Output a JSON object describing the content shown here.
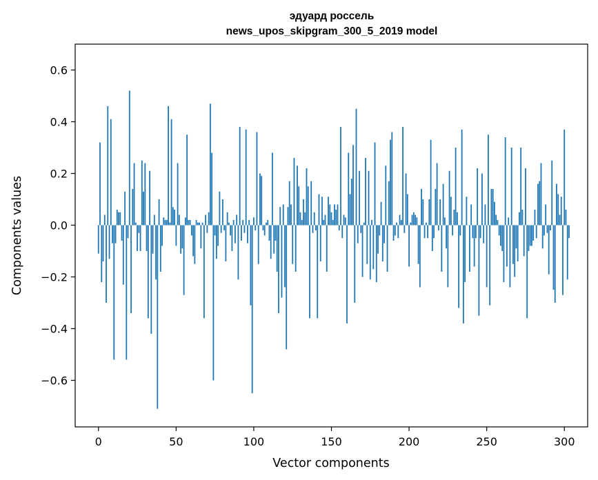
{
  "chart_data": {
    "type": "bar",
    "title": [
      "эдуард россель",
      "news_upos_skipgram_300_5_2019 model"
    ],
    "xlabel": "Vector components",
    "ylabel": "Components values",
    "xlim": [
      -15,
      315
    ],
    "ylim": [
      -0.78,
      0.7
    ],
    "xticks": [
      0,
      50,
      100,
      150,
      200,
      250,
      300
    ],
    "xtick_labels": [
      "0",
      "50",
      "100",
      "150",
      "200",
      "250",
      "300"
    ],
    "yticks": [
      -0.6,
      -0.4,
      -0.2,
      0.0,
      0.2,
      0.4,
      0.6
    ],
    "ytick_labels": [
      "−0.6",
      "−0.4",
      "−0.2",
      "0.0",
      "0.2",
      "0.4",
      "0.6"
    ],
    "color": "#1f77b4",
    "values": [
      -0.11,
      0.32,
      -0.22,
      -0.14,
      0.04,
      -0.3,
      0.46,
      -0.13,
      0.41,
      -0.07,
      -0.52,
      -0.07,
      0.06,
      0.05,
      0.05,
      -0.06,
      -0.23,
      0.13,
      -0.52,
      -0.05,
      0.52,
      -0.34,
      0.14,
      0.24,
      0.01,
      -0.1,
      -0.03,
      -0.1,
      0.25,
      0.13,
      0.24,
      -0.1,
      -0.36,
      0.21,
      -0.42,
      -0.11,
      0.04,
      -0.21,
      -0.71,
      0.1,
      -0.18,
      -0.08,
      0.03,
      0.02,
      0.02,
      0.46,
      0.01,
      0.41,
      0.07,
      0.06,
      -0.08,
      0.24,
      0.04,
      -0.11,
      -0.09,
      -0.27,
      0.03,
      0.35,
      0.02,
      0.02,
      -0.04,
      -0.12,
      -0.15,
      0.02,
      0.01,
      0.01,
      -0.09,
      0.01,
      -0.36,
      0.04,
      -0.03,
      0.05,
      0.47,
      0.28,
      -0.6,
      -0.04,
      -0.13,
      -0.08,
      0.13,
      -0.03,
      0.1,
      -0.02,
      -0.14,
      0.05,
      0.01,
      -0.04,
      -0.1,
      0.02,
      -0.07,
      0.04,
      -0.21,
      0.38,
      -0.06,
      0.02,
      -0.03,
      0.37,
      -0.07,
      0.02,
      -0.31,
      -0.65,
      0.03,
      -0.02,
      0.36,
      -0.15,
      0.2,
      0.19,
      -0.02,
      -0.04,
      0.01,
      0.02,
      -0.06,
      -0.13,
      0.28,
      -0.11,
      -0.06,
      -0.18,
      -0.34,
      0.07,
      -0.28,
      0.08,
      -0.24,
      -0.48,
      0.07,
      0.17,
      0.08,
      -0.15,
      0.26,
      -0.18,
      0.23,
      0.15,
      0.05,
      0.02,
      0.1,
      0.05,
      0.22,
      0.15,
      -0.36,
      0.17,
      -0.03,
      0.05,
      -0.02,
      -0.36,
      0.12,
      -0.14,
      0.11,
      0.02,
      0.04,
      -0.18,
      0.11,
      0.08,
      0.05,
      0.02,
      0.08,
      0.06,
      0.08,
      -0.02,
      0.38,
      -0.05,
      0.04,
      0.03,
      -0.38,
      0.28,
      0.12,
      0.18,
      0.31,
      -0.3,
      0.45,
      -0.07,
      0.21,
      -0.03,
      -0.2,
      0.01,
      0.26,
      -0.15,
      0.21,
      -0.21,
      0.02,
      -0.17,
      0.32,
      -0.22,
      -0.11,
      -0.04,
      0.09,
      -0.14,
      -0.07,
      0.23,
      -0.18,
      0.17,
      0.33,
      0.36,
      -0.06,
      -0.04,
      0.01,
      -0.05,
      0.04,
      0.02,
      0.38,
      -0.03,
      0.2,
      0.12,
      -0.16,
      0.01,
      0.04,
      0.05,
      0.04,
      0.03,
      -0.15,
      -0.24,
      0.14,
      0.1,
      -0.05,
      0.01,
      -0.05,
      0.1,
      0.33,
      -0.1,
      -0.05,
      0.14,
      0.24,
      -0.02,
      0.1,
      -0.18,
      0.16,
      0.03,
      -0.09,
      -0.24,
      0.21,
      0.11,
      -0.04,
      0.06,
      0.3,
      0.05,
      -0.32,
      -0.04,
      0.37,
      -0.38,
      -0.22,
      0.11,
      0.0,
      -0.18,
      0.08,
      -0.05,
      -0.16,
      -0.05,
      0.22,
      -0.35,
      -0.05,
      0.2,
      -0.07,
      0.08,
      -0.24,
      0.35,
      -0.31,
      0.14,
      0.14,
      0.09,
      0.04,
      0.02,
      -0.04,
      -0.08,
      -0.1,
      -0.22,
      0.34,
      -0.16,
      0.03,
      -0.24,
      0.3,
      -0.15,
      -0.2,
      -0.09,
      -0.14,
      0.05,
      0.3,
      0.06,
      -0.12,
      0.22,
      -0.36,
      -0.1,
      -0.08,
      -0.08,
      -0.06,
      0.06,
      -0.05,
      0.16,
      0.17,
      0.24,
      -0.09,
      -0.04,
      0.08,
      -0.03,
      -0.19,
      -0.02,
      0.25,
      -0.25,
      -0.3,
      0.16,
      0.12,
      0.04,
      0.11,
      -0.27,
      0.37,
      0.06,
      -0.21,
      -0.05
    ]
  }
}
